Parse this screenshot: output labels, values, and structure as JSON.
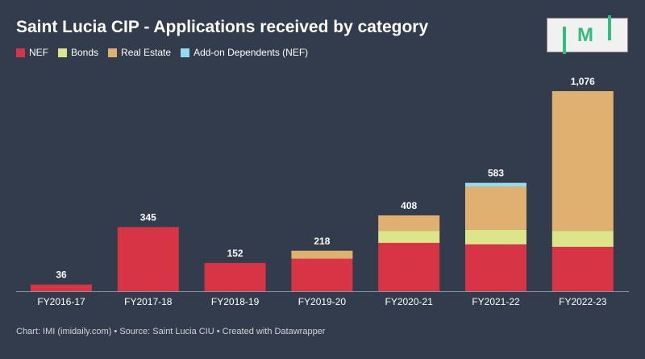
{
  "title": "Saint Lucia CIP - Applications received by category",
  "logo_text": "IMI",
  "footer": "Chart: IMI (imidaily.com) • Source: Saint Lucia CIU • Created with Datawrapper",
  "chart_data": {
    "type": "bar",
    "stacked": true,
    "title": "Saint Lucia CIP - Applications received by category",
    "legend_position": "top-left",
    "categories": [
      "FY2016-17",
      "FY2017-18",
      "FY2018-19",
      "FY2019-20",
      "FY2020-21",
      "FY2021-22",
      "FY2022-23"
    ],
    "series": [
      {
        "name": "NEF",
        "color": "#d73445",
        "values": [
          36,
          345,
          152,
          175,
          260,
          252,
          239
        ]
      },
      {
        "name": "Bonds",
        "color": "#dde58a",
        "values": [
          0,
          0,
          0,
          0,
          65,
          78,
          86
        ]
      },
      {
        "name": "Real Estate",
        "color": "#e0b070",
        "values": [
          0,
          0,
          0,
          43,
          83,
          234,
          751
        ]
      },
      {
        "name": "Add-on Dependents (NEF)",
        "color": "#8fdcf5",
        "values": [
          0,
          0,
          0,
          0,
          0,
          19,
          0
        ]
      }
    ],
    "totals": [
      "36",
      "345",
      "152",
      "218",
      "408",
      "583",
      "1,076"
    ],
    "ylim": [
      0,
      1076
    ],
    "grid": false
  }
}
